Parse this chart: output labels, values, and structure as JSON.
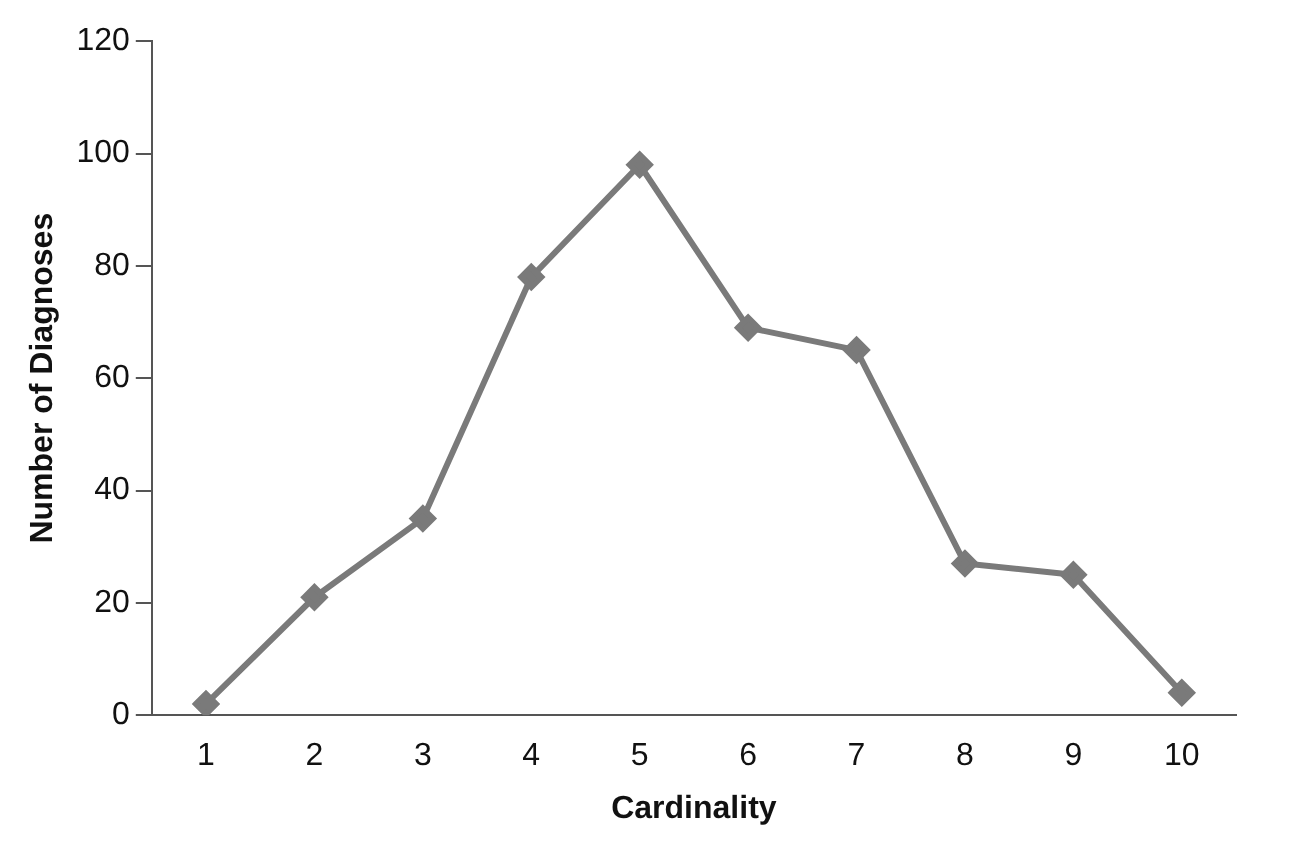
{
  "chart_data": {
    "type": "line",
    "xlabel": "Cardinality",
    "ylabel": "Number of Diagnoses",
    "categories": [
      "1",
      "2",
      "3",
      "4",
      "5",
      "6",
      "7",
      "8",
      "9",
      "10"
    ],
    "series": [
      {
        "color": "#7a7a7a",
        "values": [
          2,
          21,
          35,
          78,
          98,
          69,
          65,
          27,
          25,
          4
        ]
      }
    ],
    "ylim": [
      0,
      120
    ],
    "yticks": [
      0,
      20,
      40,
      60,
      80,
      100,
      120
    ],
    "grid": false,
    "legend": false,
    "marker": "diamond",
    "line_style": "solid"
  }
}
